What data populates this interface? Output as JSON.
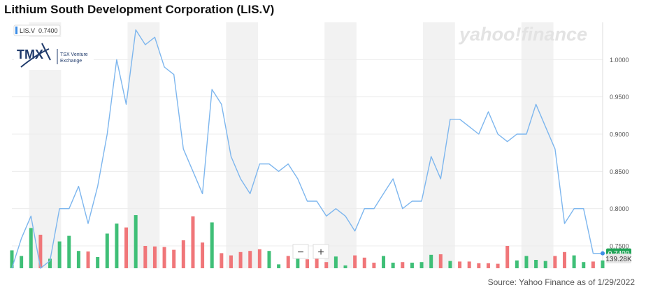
{
  "title": "Lithium South Development Corporation (LIS.V)",
  "source_note": "Source: Yahoo Finance as of 1/29/2022",
  "watermark": "yahoo!finance",
  "legend": {
    "symbol": "LIS.V",
    "value": "0.7400",
    "color": "#3d8ee6"
  },
  "exchange_logo": {
    "tmx": "TMX",
    "line1": "TSX Venture",
    "line2": "Exchange"
  },
  "zoom": {
    "minus": "−",
    "plus": "+"
  },
  "colors": {
    "price_line": "#7db6ee",
    "up_volume": "#3fbf77",
    "down_volume": "#f07679",
    "last_price_badge": "#20a457",
    "volume_badge": "#e8e8e8",
    "band": "#f2f2f2"
  },
  "chart_data": {
    "type": "line",
    "title": "Lithium South Development Corporation (LIS.V)",
    "xlabel": "",
    "ylabel": "",
    "ylim": [
      0.72,
      1.05
    ],
    "y_ticks": [
      "1.0000",
      "0.9500",
      "0.9000",
      "0.8500",
      "0.8000",
      "0.7500"
    ],
    "grid": true,
    "last_price_label": "0.7400",
    "volume_label": "139.28K",
    "series": [
      {
        "values": [
          0.72,
          0.76,
          0.79,
          0.72,
          0.73,
          0.8,
          0.8,
          0.83,
          0.78,
          0.83,
          0.9,
          1.0,
          0.94,
          1.04,
          1.02,
          1.03,
          0.99,
          0.98,
          0.88,
          0.85,
          0.82,
          0.96,
          0.94,
          0.87,
          0.84,
          0.82,
          0.86,
          0.86,
          0.85,
          0.86,
          0.84,
          0.81,
          0.81,
          0.79,
          0.8,
          0.79,
          0.77,
          0.8,
          0.8,
          0.82,
          0.84,
          0.8,
          0.81,
          0.81,
          0.87,
          0.84,
          0.92,
          0.92,
          0.91,
          0.9,
          0.93,
          0.9,
          0.89,
          0.9,
          0.9,
          0.94,
          0.91,
          0.88,
          0.78,
          0.8,
          0.8,
          0.74,
          0.74
        ]
      }
    ],
    "volume": {
      "values": [
        0.32,
        0.22,
        0.72,
        0.6,
        0.17,
        0.48,
        0.58,
        0.31,
        0.3,
        0.2,
        0.62,
        0.8,
        0.73,
        0.95,
        0.4,
        0.39,
        0.38,
        0.33,
        0.5,
        0.93,
        0.46,
        0.82,
        0.27,
        0.23,
        0.29,
        0.31,
        0.34,
        0.31,
        0.07,
        0.22,
        0.3,
        0.16,
        0.2,
        0.11,
        0.21,
        0.05,
        0.23,
        0.19,
        0.1,
        0.22,
        0.1,
        0.11,
        0.1,
        0.11,
        0.24,
        0.25,
        0.13,
        0.12,
        0.12,
        0.09,
        0.09,
        0.08,
        0.4,
        0.14,
        0.22,
        0.15,
        0.13,
        0.22,
        0.29,
        0.23,
        0.11,
        0.12,
        0.14
      ],
      "up": [
        true,
        true,
        true,
        false,
        true,
        true,
        true,
        true,
        false,
        true,
        true,
        true,
        false,
        true,
        false,
        false,
        false,
        false,
        false,
        false,
        false,
        true,
        false,
        false,
        false,
        false,
        false,
        true,
        true,
        false,
        true,
        false,
        false,
        false,
        true,
        true,
        false,
        false,
        false,
        true,
        true,
        false,
        true,
        true,
        true,
        false,
        true,
        false,
        false,
        false,
        false,
        false,
        false,
        true,
        true,
        true,
        true,
        false,
        false,
        true,
        true,
        false,
        true
      ]
    }
  }
}
